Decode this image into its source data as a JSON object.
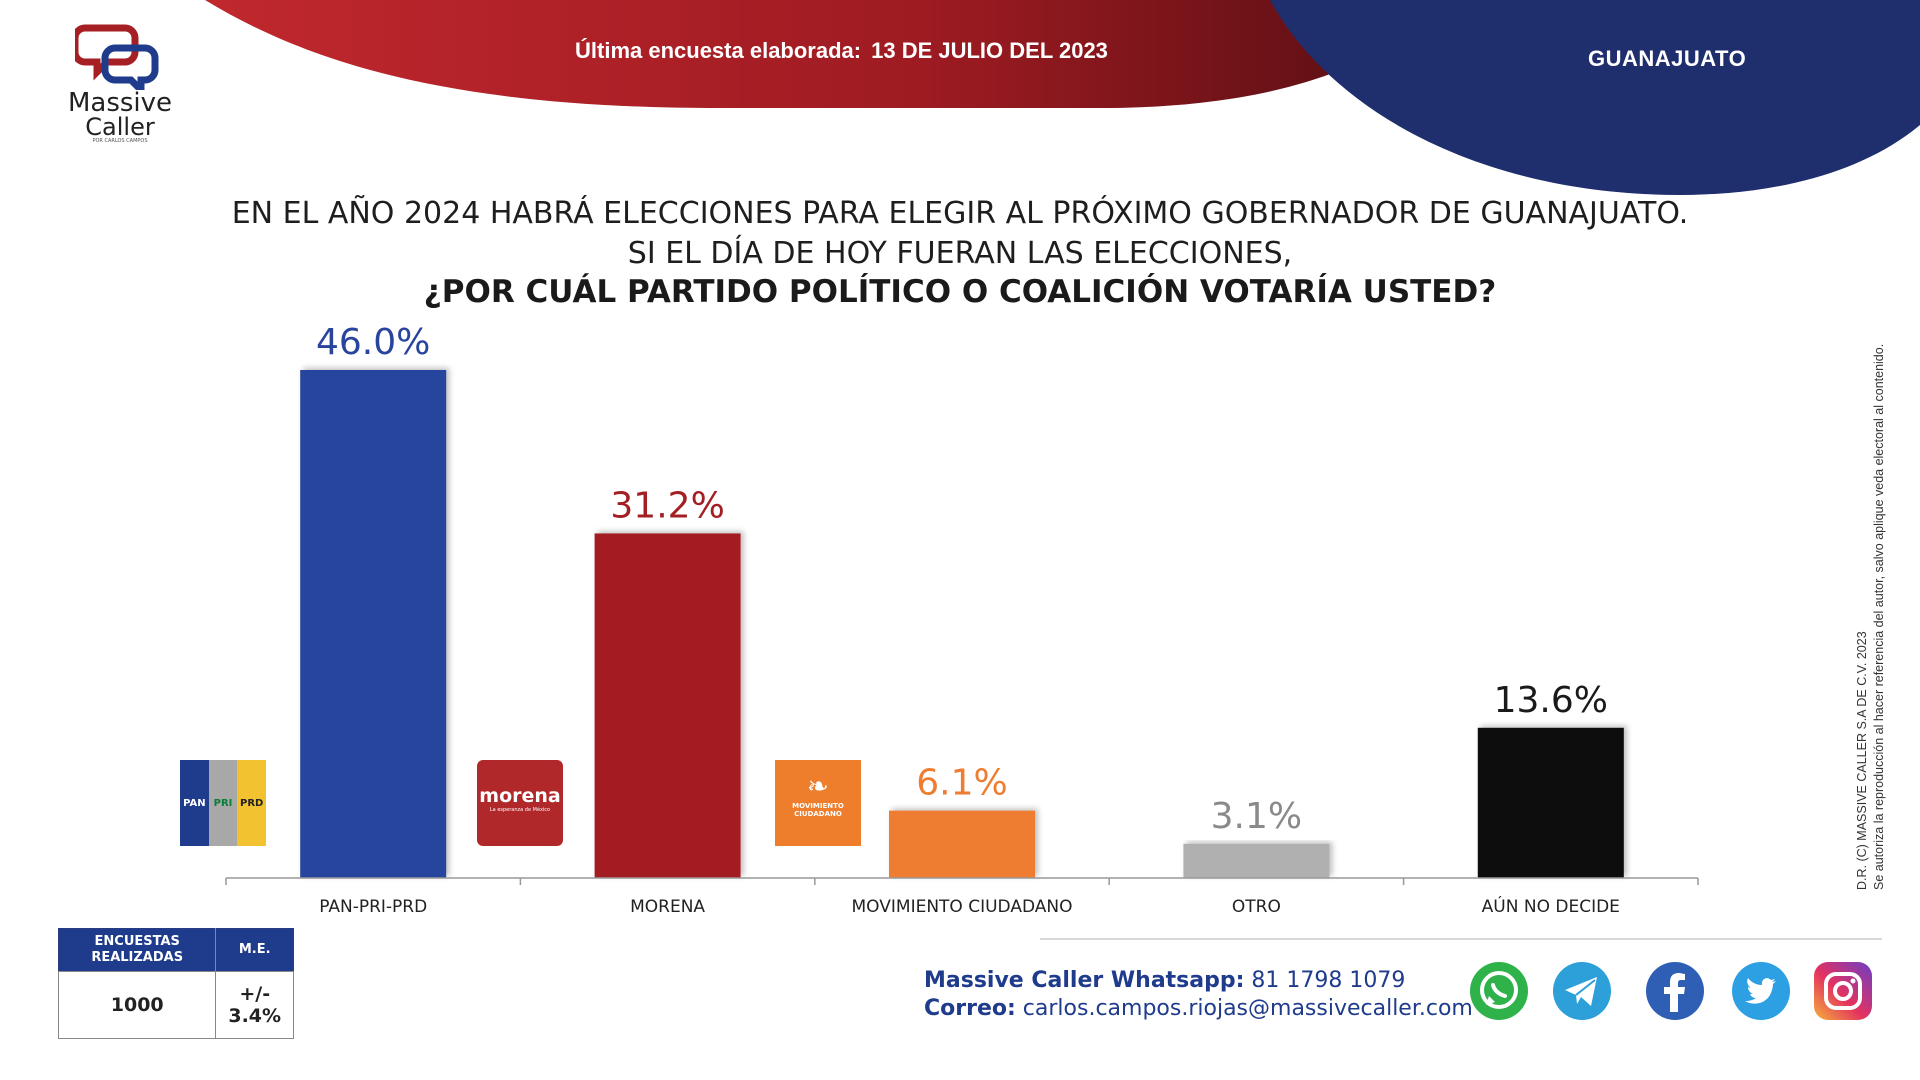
{
  "header": {
    "survey_label": "Última encuesta elaborada:",
    "survey_date": "13 DE JULIO DEL 2023",
    "state": "GUANAJUATO",
    "red_color": "#9e1b22",
    "blue_color": "#1f2f6e"
  },
  "logo": {
    "word1": "Massive",
    "word2": "Caller",
    "sub": "POR CARLOS CAMPOS"
  },
  "question": {
    "line1": "EN EL AÑO 2024 HABRÁ ELECCIONES PARA ELEGIR AL PRÓXIMO GOBERNADOR DE GUANAJUATO.",
    "line2": "SI EL DÍA DE HOY FUERAN LAS ELECCIONES,",
    "line3": "¿POR CUÁL PARTIDO POLÍTICO O COALICIÓN VOTARÍA USTED?"
  },
  "chart_data": {
    "type": "bar",
    "categories": [
      "PAN-PRI-PRD",
      "MORENA",
      "MOVIMIENTO CIUDADANO",
      "OTRO",
      "AÚN NO DECIDE"
    ],
    "values": [
      46.0,
      31.2,
      6.1,
      3.1,
      13.6
    ],
    "value_labels": [
      "46.0%",
      "31.2%",
      "6.1%",
      "3.1%",
      "13.6%"
    ],
    "colors": [
      "#28449c",
      "#a31f24",
      "#ee7d32",
      "#b0b0b0",
      "#0a0a0a"
    ],
    "label_colors": [
      "#28449c",
      "#a31f24",
      "#ee7d32",
      "#8a8a8a",
      "#1a1a1a"
    ],
    "ylim": [
      0,
      50
    ],
    "grid": false,
    "xlabel": "",
    "ylabel": ""
  },
  "party_logos": {
    "pan": "PAN",
    "pri": "PRI",
    "prd": "PRD",
    "morena_name": "morena",
    "morena_tagline": "La esperanza de México",
    "mc_name": "MOVIMIENTO CIUDADANO"
  },
  "stats": {
    "col1_header": "ENCUESTAS REALIZADAS",
    "col2_header": "M.E.",
    "col1_value": "1000",
    "col2_value": "+/- 3.4%"
  },
  "contact": {
    "whatsapp_label": "Massive Caller Whatsapp:",
    "whatsapp_value": "81 1798 1079",
    "email_label": "Correo:",
    "email_value": "carlos.campos.riojas@massivecaller.com"
  },
  "social": [
    "whatsapp-icon",
    "telegram-icon",
    "facebook-icon",
    "twitter-icon",
    "instagram-icon"
  ],
  "copyright": {
    "line1": "D.R. (C) MASSIVE CALLER S.A DE C.V. 2023",
    "line2": "Se autoriza la reproducción al hacer referencia del autor, salvo aplique veda electoral al contenido."
  }
}
